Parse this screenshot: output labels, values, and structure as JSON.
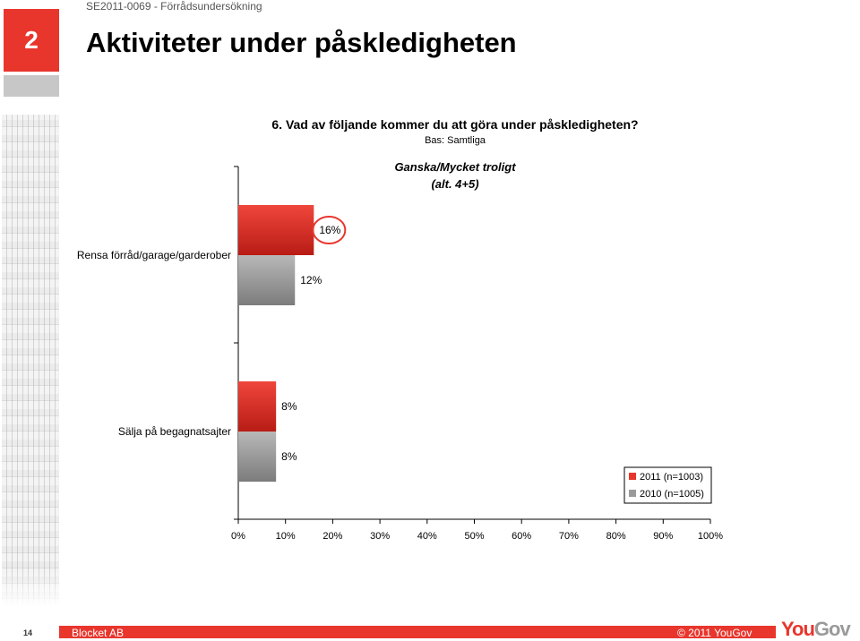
{
  "header": {
    "doc_id": "SE2011-0069 - Förrådsundersökning",
    "section_number": "2",
    "slide_title": "Aktiviteter under påskledigheten"
  },
  "footer": {
    "page_number": "14",
    "left": "Blocket AB",
    "right": "© 2011 YouGov",
    "logo_main": "You",
    "logo_tail": "Gov"
  },
  "colors": {
    "series_2011": "#e8362d",
    "series_2010": "#9a9a9a",
    "accent": "#e8362d"
  },
  "chart_data": {
    "type": "bar",
    "orientation": "horizontal",
    "title": "6. Vad av följande kommer du att göra under påskledigheten?",
    "subtitle": "Bas: Samtliga",
    "annotation": "Ganska/Mycket troligt",
    "annotation_sub": "(alt. 4+5)",
    "categories": [
      "Rensa förråd/garage/garderober",
      "Sälja på begagnatsajter"
    ],
    "series": [
      {
        "name": "2011 (n=1003)",
        "values": [
          16,
          8
        ],
        "labels": [
          "16%",
          "8%"
        ]
      },
      {
        "name": "2010 (n=1005)",
        "values": [
          12,
          8
        ],
        "labels": [
          "12%",
          "8%"
        ]
      }
    ],
    "xlim": [
      0,
      100
    ],
    "x_ticks": [
      0,
      10,
      20,
      30,
      40,
      50,
      60,
      70,
      80,
      90,
      100
    ],
    "x_tick_labels": [
      "0%",
      "10%",
      "20%",
      "30%",
      "40%",
      "50%",
      "60%",
      "70%",
      "80%",
      "90%",
      "100%"
    ],
    "highlight": {
      "series": 0,
      "category": 0
    },
    "grid": false,
    "legend_position": "bottom-right"
  }
}
